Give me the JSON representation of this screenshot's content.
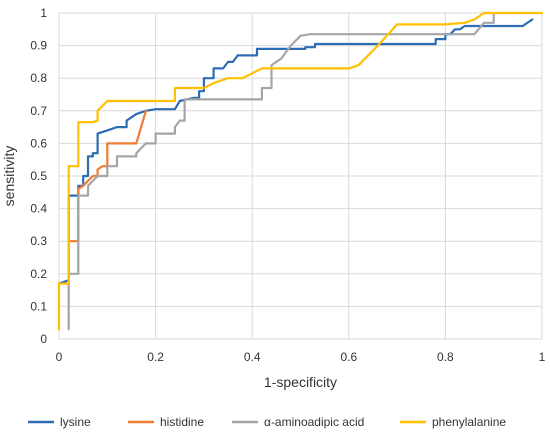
{
  "chart_data": {
    "type": "line",
    "title": "",
    "xlabel": "1-specificity",
    "ylabel": "sensitivity",
    "xlim": [
      0,
      1
    ],
    "ylim": [
      0,
      1
    ],
    "x_ticks": [
      "0",
      "0.2",
      "0.4",
      "0.6",
      "0.8",
      "1"
    ],
    "y_ticks": [
      "0",
      "0.1",
      "0.2",
      "0.3",
      "0.4",
      "0.5",
      "0.6",
      "0.7",
      "0.8",
      "0.9",
      "1"
    ],
    "grid": true,
    "legend_position": "bottom",
    "series": [
      {
        "name": "lysine",
        "color": "#2E6DB4",
        "points": [
          [
            0,
            0.17
          ],
          [
            0.02,
            0.18
          ],
          [
            0.02,
            0.44
          ],
          [
            0.04,
            0.44
          ],
          [
            0.04,
            0.47
          ],
          [
            0.05,
            0.47
          ],
          [
            0.05,
            0.5
          ],
          [
            0.06,
            0.5
          ],
          [
            0.06,
            0.56
          ],
          [
            0.07,
            0.56
          ],
          [
            0.07,
            0.57
          ],
          [
            0.08,
            0.57
          ],
          [
            0.08,
            0.63
          ],
          [
            0.1,
            0.64
          ],
          [
            0.12,
            0.65
          ],
          [
            0.14,
            0.65
          ],
          [
            0.14,
            0.67
          ],
          [
            0.16,
            0.69
          ],
          [
            0.18,
            0.7
          ],
          [
            0.2,
            0.705
          ],
          [
            0.24,
            0.705
          ],
          [
            0.25,
            0.73
          ],
          [
            0.28,
            0.74
          ],
          [
            0.29,
            0.74
          ],
          [
            0.29,
            0.76
          ],
          [
            0.3,
            0.76
          ],
          [
            0.3,
            0.8
          ],
          [
            0.32,
            0.8
          ],
          [
            0.32,
            0.83
          ],
          [
            0.34,
            0.83
          ],
          [
            0.35,
            0.85
          ],
          [
            0.36,
            0.85
          ],
          [
            0.37,
            0.87
          ],
          [
            0.4,
            0.87
          ],
          [
            0.41,
            0.87
          ],
          [
            0.41,
            0.89
          ],
          [
            0.51,
            0.89
          ],
          [
            0.51,
            0.895
          ],
          [
            0.53,
            0.895
          ],
          [
            0.53,
            0.905
          ],
          [
            0.77,
            0.905
          ],
          [
            0.78,
            0.905
          ],
          [
            0.78,
            0.92
          ],
          [
            0.8,
            0.92
          ],
          [
            0.8,
            0.935
          ],
          [
            0.81,
            0.935
          ],
          [
            0.82,
            0.95
          ],
          [
            0.83,
            0.95
          ],
          [
            0.84,
            0.96
          ],
          [
            0.96,
            0.96
          ],
          [
            0.98,
            0.98
          ]
        ]
      },
      {
        "name": "histidine",
        "color": "#ED7D31",
        "points": [
          [
            0.02,
            0.18
          ],
          [
            0.02,
            0.3
          ],
          [
            0.04,
            0.3
          ],
          [
            0.04,
            0.46
          ],
          [
            0.05,
            0.47
          ],
          [
            0.07,
            0.5
          ],
          [
            0.08,
            0.5
          ],
          [
            0.08,
            0.52
          ],
          [
            0.09,
            0.53
          ],
          [
            0.1,
            0.53
          ],
          [
            0.1,
            0.6
          ],
          [
            0.15,
            0.6
          ],
          [
            0.16,
            0.6
          ],
          [
            0.17,
            0.65
          ],
          [
            0.18,
            0.7
          ]
        ]
      },
      {
        "name": "α-aminoadipic acid",
        "color": "#A5A5A5",
        "points": [
          [
            0.02,
            0.03
          ],
          [
            0.02,
            0.2
          ],
          [
            0.04,
            0.2
          ],
          [
            0.04,
            0.44
          ],
          [
            0.06,
            0.44
          ],
          [
            0.06,
            0.47
          ],
          [
            0.08,
            0.5
          ],
          [
            0.1,
            0.5
          ],
          [
            0.1,
            0.53
          ],
          [
            0.12,
            0.53
          ],
          [
            0.12,
            0.56
          ],
          [
            0.16,
            0.56
          ],
          [
            0.16,
            0.57
          ],
          [
            0.18,
            0.6
          ],
          [
            0.2,
            0.6
          ],
          [
            0.2,
            0.63
          ],
          [
            0.24,
            0.63
          ],
          [
            0.24,
            0.65
          ],
          [
            0.25,
            0.67
          ],
          [
            0.26,
            0.67
          ],
          [
            0.26,
            0.735
          ],
          [
            0.42,
            0.735
          ],
          [
            0.42,
            0.77
          ],
          [
            0.44,
            0.77
          ],
          [
            0.44,
            0.84
          ],
          [
            0.46,
            0.86
          ],
          [
            0.48,
            0.9
          ],
          [
            0.5,
            0.93
          ],
          [
            0.52,
            0.935
          ],
          [
            0.58,
            0.935
          ],
          [
            0.6,
            0.935
          ],
          [
            0.84,
            0.935
          ],
          [
            0.86,
            0.935
          ],
          [
            0.88,
            0.97
          ],
          [
            0.9,
            0.97
          ],
          [
            0.9,
            1
          ]
        ]
      },
      {
        "name": "phenylalanine",
        "color": "#FFC000",
        "points": [
          [
            0,
            0.03
          ],
          [
            0,
            0.17
          ],
          [
            0.02,
            0.17
          ],
          [
            0.02,
            0.53
          ],
          [
            0.04,
            0.53
          ],
          [
            0.04,
            0.665
          ],
          [
            0.07,
            0.665
          ],
          [
            0.08,
            0.67
          ],
          [
            0.08,
            0.7
          ],
          [
            0.1,
            0.73
          ],
          [
            0.24,
            0.73
          ],
          [
            0.24,
            0.77
          ],
          [
            0.28,
            0.77
          ],
          [
            0.3,
            0.77
          ],
          [
            0.32,
            0.785
          ],
          [
            0.35,
            0.8
          ],
          [
            0.38,
            0.8
          ],
          [
            0.42,
            0.83
          ],
          [
            0.6,
            0.83
          ],
          [
            0.62,
            0.84
          ],
          [
            0.66,
            0.9
          ],
          [
            0.7,
            0.965
          ],
          [
            0.8,
            0.965
          ],
          [
            0.84,
            0.97
          ],
          [
            0.86,
            0.98
          ],
          [
            0.88,
            1
          ],
          [
            1,
            1
          ]
        ]
      }
    ]
  }
}
